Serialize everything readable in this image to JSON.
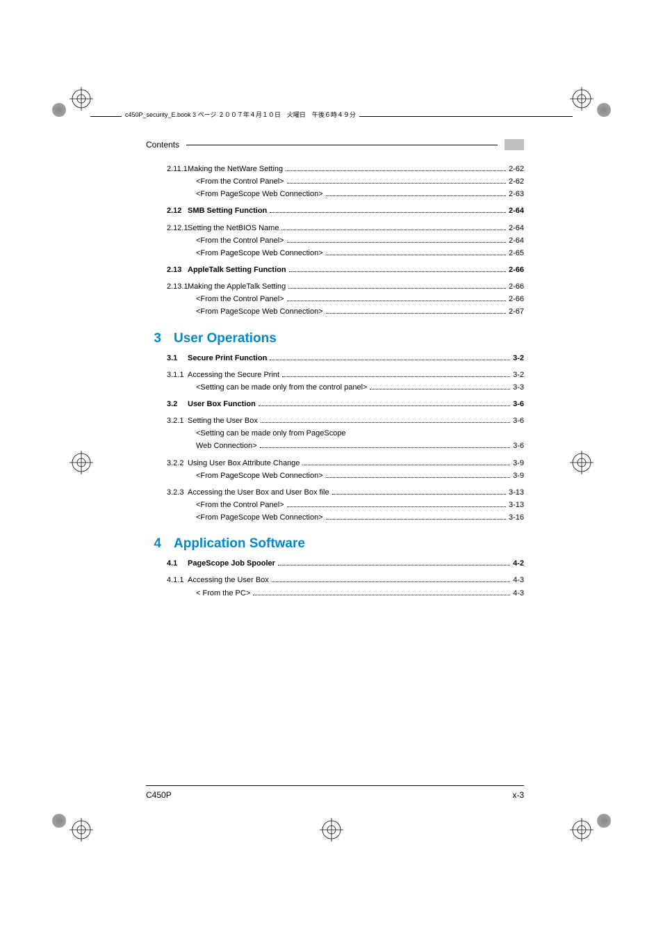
{
  "header_line": "c450P_security_E.book  3 ページ  ２００７年４月１０日　火曜日　午後６時４９分",
  "contents_label": "Contents",
  "footer_left": "C450P",
  "footer_right": "x-3",
  "colors": {
    "chapter_blue": "#0088cc",
    "gray_box": "#bfbfbf",
    "text": "#000000",
    "background": "#ffffff"
  },
  "typography": {
    "body_fontsize": 11,
    "contents_fontsize": 12,
    "chapter_fontsize": 19,
    "header_fontsize": 9,
    "footer_fontsize": 12
  },
  "toc": [
    {
      "num": "2.11.1",
      "level": 2,
      "text": "Making the NetWare Setting",
      "page": "2-62"
    },
    {
      "num": "",
      "level": 3,
      "text": "<From the Control Panel>",
      "page": "2-62"
    },
    {
      "num": "",
      "level": 3,
      "text": "<From PageScope Web Connection>",
      "page": "2-63"
    },
    {
      "num": "2.12",
      "level": 1,
      "text": "SMB Setting Function",
      "page": "2-64",
      "bold": true
    },
    {
      "num": "2.12.1",
      "level": 2,
      "text": "Setting the NetBIOS Name",
      "page": "2-64"
    },
    {
      "num": "",
      "level": 3,
      "text": "<From the Control Panel>",
      "page": "2-64"
    },
    {
      "num": "",
      "level": 3,
      "text": "<From PageScope Web Connection>",
      "page": "2-65"
    },
    {
      "num": "2.13",
      "level": 1,
      "text": "AppleTalk Setting Function",
      "page": "2-66",
      "bold": true
    },
    {
      "num": "2.13.1",
      "level": 2,
      "text": "Making the AppleTalk Setting",
      "page": "2-66"
    },
    {
      "num": "",
      "level": 3,
      "text": "<From the Control Panel>",
      "page": "2-66"
    },
    {
      "num": "",
      "level": 3,
      "text": "<From PageScope Web Connection>",
      "page": "2-67"
    }
  ],
  "chapter3": {
    "num": "3",
    "title": "User Operations",
    "items": [
      {
        "num": "3.1",
        "level": 1,
        "text": "Secure Print Function",
        "page": "3-2",
        "bold": true
      },
      {
        "num": "3.1.1",
        "level": 2,
        "text": "Accessing the Secure Print",
        "page": "3-2"
      },
      {
        "num": "",
        "level": 3,
        "text": "<Setting can be made only from the control panel>",
        "page": "3-3"
      },
      {
        "num": "3.2",
        "level": 1,
        "text": "User Box Function",
        "page": "3-6",
        "bold": true
      },
      {
        "num": "3.2.1",
        "level": 2,
        "text": "Setting the User Box",
        "page": "3-6"
      },
      {
        "num": "",
        "level": 3,
        "wrap": true,
        "text1": "<Setting can be made only from PageScope",
        "text2": "Web Connection>",
        "page": "3-6"
      },
      {
        "num": "3.2.2",
        "level": 2,
        "text": "Using User Box Attribute Change",
        "page": "3-9"
      },
      {
        "num": "",
        "level": 3,
        "text": "<From PageScope Web Connection>",
        "page": "3-9"
      },
      {
        "num": "3.2.3",
        "level": 2,
        "text": "Accessing the User Box and User Box file",
        "page": "3-13"
      },
      {
        "num": "",
        "level": 3,
        "text": "<From the Control Panel>",
        "page": "3-13"
      },
      {
        "num": "",
        "level": 3,
        "text": "<From PageScope Web Connection>",
        "page": "3-16"
      }
    ]
  },
  "chapter4": {
    "num": "4",
    "title": "Application Software",
    "items": [
      {
        "num": "4.1",
        "level": 1,
        "text": "PageScope Job Spooler",
        "page": "4-2",
        "bold": true
      },
      {
        "num": "4.1.1",
        "level": 2,
        "text": "Accessing the User Box",
        "page": "4-3"
      },
      {
        "num": "",
        "level": 3,
        "text": "< From the PC>",
        "page": "4-3"
      }
    ]
  }
}
